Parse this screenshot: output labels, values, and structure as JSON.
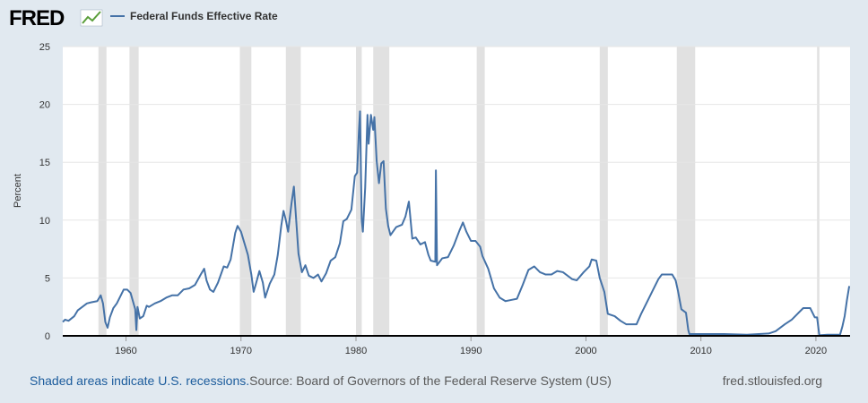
{
  "chart_data": {
    "type": "line",
    "logo": "FRED",
    "y_label": "Percent",
    "note": "Shaded areas indicate U.S. recessions.",
    "source": "Source: Board of Governors of the Federal Reserve System (US)",
    "site": "fred.stlouisfed.org",
    "xlim": [
      1954.5,
      2022.97
    ],
    "xticks": [
      1960,
      1970,
      1980,
      1990,
      2000,
      2010,
      2020
    ],
    "ylim": [
      0,
      25
    ],
    "yticks": [
      0,
      5,
      10,
      15,
      20,
      25
    ],
    "grid": true,
    "recession_color": "#e1e1e1",
    "recessions": [
      {
        "start": 1957.6,
        "end": 1958.3
      },
      {
        "start": 1960.3,
        "end": 1961.1
      },
      {
        "start": 1969.9,
        "end": 1970.9
      },
      {
        "start": 1973.9,
        "end": 1975.2
      },
      {
        "start": 1980.0,
        "end": 1980.5
      },
      {
        "start": 1981.5,
        "end": 1982.9
      },
      {
        "start": 1990.5,
        "end": 1991.2
      },
      {
        "start": 2001.2,
        "end": 2001.9
      },
      {
        "start": 2007.9,
        "end": 2009.5
      },
      {
        "start": 2020.1,
        "end": 2020.3
      }
    ],
    "series": [
      {
        "name": "Federal Funds Effective Rate",
        "color": "#4572a7",
        "x": [
          1954.5,
          1954.7,
          1955.0,
          1955.5,
          1955.8,
          1956.2,
          1956.6,
          1957.0,
          1957.5,
          1957.8,
          1958.0,
          1958.2,
          1958.4,
          1958.6,
          1958.9,
          1959.2,
          1959.5,
          1959.8,
          1960.1,
          1960.4,
          1960.6,
          1960.8,
          1960.9,
          1961.0,
          1961.2,
          1961.5,
          1961.8,
          1962.0,
          1962.5,
          1963.0,
          1963.5,
          1964.0,
          1964.5,
          1965.0,
          1965.5,
          1966.0,
          1966.5,
          1966.8,
          1967.0,
          1967.3,
          1967.6,
          1968.0,
          1968.5,
          1968.8,
          1969.1,
          1969.5,
          1969.7,
          1970.0,
          1970.3,
          1970.6,
          1970.9,
          1971.1,
          1971.3,
          1971.6,
          1971.9,
          1972.1,
          1972.5,
          1972.9,
          1973.2,
          1973.5,
          1973.7,
          1973.9,
          1974.1,
          1974.4,
          1974.6,
          1974.8,
          1975.0,
          1975.3,
          1975.6,
          1975.9,
          1976.3,
          1976.7,
          1977.0,
          1977.4,
          1977.8,
          1978.2,
          1978.6,
          1978.9,
          1979.2,
          1979.6,
          1979.9,
          1980.1,
          1980.25,
          1980.35,
          1980.5,
          1980.6,
          1980.8,
          1981.0,
          1981.1,
          1981.3,
          1981.5,
          1981.6,
          1981.8,
          1982.0,
          1982.2,
          1982.4,
          1982.6,
          1982.8,
          1983.0,
          1983.5,
          1984.0,
          1984.3,
          1984.6,
          1984.9,
          1985.2,
          1985.6,
          1986.0,
          1986.3,
          1986.5,
          1986.9,
          1986.95,
          1987.05,
          1987.5,
          1988.0,
          1988.5,
          1989.0,
          1989.3,
          1989.6,
          1990.0,
          1990.4,
          1990.8,
          1991.0,
          1991.5,
          1992.0,
          1992.5,
          1993.0,
          1993.5,
          1994.0,
          1994.5,
          1995.0,
          1995.5,
          1996.0,
          1996.5,
          1997.0,
          1997.5,
          1998.0,
          1998.8,
          1999.2,
          1999.8,
          2000.3,
          2000.5,
          2000.9,
          2001.2,
          2001.6,
          2001.9,
          2002.5,
          2003.0,
          2003.5,
          2004.4,
          2004.8,
          2005.3,
          2005.8,
          2006.3,
          2006.6,
          2007.5,
          2007.8,
          2008.0,
          2008.3,
          2008.7,
          2008.9,
          2009.0,
          2010.0,
          2012.0,
          2014.0,
          2015.9,
          2016.5,
          2017.3,
          2017.9,
          2018.4,
          2018.9,
          2019.5,
          2019.9,
          2020.1,
          2020.3,
          2021.0,
          2022.1,
          2022.3,
          2022.5,
          2022.7,
          2022.9
        ],
        "values": [
          1.2,
          1.4,
          1.3,
          1.7,
          2.2,
          2.5,
          2.8,
          2.9,
          3.0,
          3.5,
          2.8,
          1.2,
          0.7,
          1.6,
          2.4,
          2.8,
          3.4,
          4.0,
          4.0,
          3.7,
          3.0,
          2.3,
          0.5,
          2.5,
          1.5,
          1.7,
          2.6,
          2.5,
          2.8,
          3.0,
          3.3,
          3.5,
          3.5,
          4.0,
          4.1,
          4.4,
          5.3,
          5.8,
          4.8,
          4.0,
          3.8,
          4.6,
          6.0,
          5.9,
          6.6,
          8.9,
          9.5,
          9.0,
          8.0,
          7.0,
          5.3,
          3.8,
          4.5,
          5.6,
          4.6,
          3.3,
          4.5,
          5.3,
          7.0,
          9.5,
          10.8,
          10.0,
          9.0,
          11.5,
          12.9,
          10.0,
          7.1,
          5.5,
          6.1,
          5.2,
          5.0,
          5.3,
          4.7,
          5.4,
          6.5,
          6.8,
          8.0,
          9.9,
          10.1,
          10.9,
          13.8,
          14.1,
          17.6,
          19.4,
          10.0,
          9.0,
          12.8,
          19.1,
          16.6,
          19.1,
          17.8,
          18.9,
          15.1,
          13.2,
          14.9,
          15.1,
          11.0,
          9.5,
          8.7,
          9.4,
          9.6,
          10.3,
          11.6,
          8.4,
          8.5,
          7.9,
          8.1,
          7.0,
          6.5,
          6.4,
          14.3,
          6.1,
          6.7,
          6.8,
          7.8,
          9.1,
          9.8,
          9.0,
          8.2,
          8.2,
          7.7,
          6.9,
          5.8,
          4.1,
          3.3,
          3.0,
          3.1,
          3.2,
          4.4,
          5.7,
          6.0,
          5.5,
          5.3,
          5.3,
          5.6,
          5.5,
          4.9,
          4.8,
          5.5,
          6.0,
          6.6,
          6.5,
          5.0,
          3.8,
          1.9,
          1.7,
          1.3,
          1.0,
          1.0,
          1.9,
          2.9,
          3.9,
          4.9,
          5.3,
          5.3,
          4.8,
          3.9,
          2.3,
          2.0,
          0.5,
          0.15,
          0.15,
          0.15,
          0.1,
          0.2,
          0.4,
          1.0,
          1.4,
          1.9,
          2.4,
          2.4,
          1.6,
          1.6,
          0.05,
          0.1,
          0.1,
          0.8,
          1.7,
          3.1,
          4.3
        ]
      }
    ]
  }
}
